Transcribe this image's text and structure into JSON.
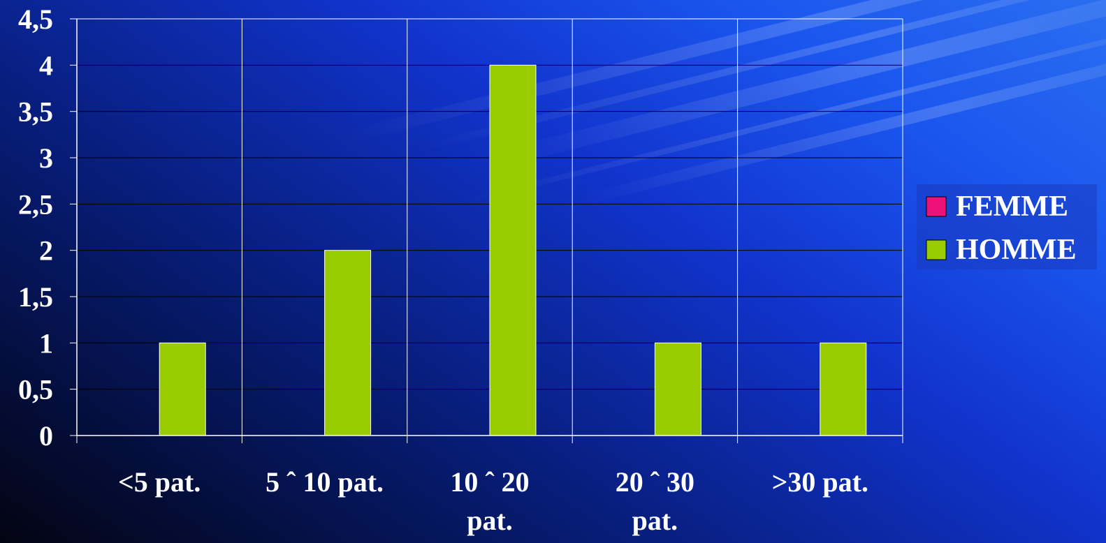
{
  "chart_data": {
    "type": "bar",
    "categories": [
      [
        "<5 pat."
      ],
      [
        "5 ˆ 10 pat."
      ],
      [
        "10 ˆ 20",
        "pat."
      ],
      [
        "20 ˆ 30",
        "pat."
      ],
      [
        ">30 pat."
      ]
    ],
    "series": [
      {
        "name": "FEMME",
        "color": "#ee1177",
        "values": [
          0,
          0,
          0,
          0,
          0
        ]
      },
      {
        "name": "HOMME",
        "color": "#99cc00",
        "values": [
          1,
          2,
          4,
          1,
          1
        ]
      }
    ],
    "ylim": [
      0,
      4.5
    ],
    "yticks": [
      "0",
      "0,5",
      "1",
      "1,5",
      "2",
      "2,5",
      "3",
      "3,5",
      "4",
      "4,5"
    ],
    "grid": true,
    "legend": "right"
  }
}
